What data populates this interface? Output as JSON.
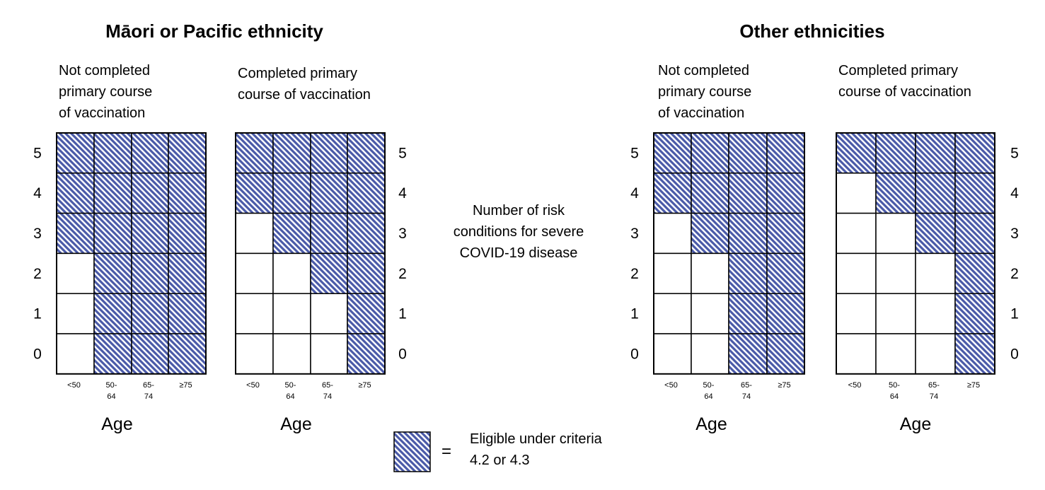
{
  "colors": {
    "hatch_fill": "#4a5aa8",
    "hatch_background": "#ffffff",
    "grid_line": "#000000"
  },
  "sections": [
    {
      "title": "Māori or Pacific ethnicity"
    },
    {
      "title": "Other ethnicities"
    }
  ],
  "row_values": [
    "5",
    "4",
    "3",
    "2",
    "1",
    "0"
  ],
  "age_ticks": [
    [
      "<50"
    ],
    [
      "50-",
      "64"
    ],
    [
      "65-",
      "74"
    ],
    [
      "≥75"
    ]
  ],
  "axis_title": "Age",
  "center_label": [
    "Number of risk",
    "conditions for severe",
    "COVID-19 disease"
  ],
  "legend": {
    "equals": "=",
    "text_lines": [
      "Eligible under criteria",
      "4.2 or 4.3"
    ]
  },
  "panels": [
    {
      "section": 0,
      "title_lines": [
        "Not completed",
        "primary course",
        "of vaccination"
      ],
      "row_label_side": "left",
      "eligible": [
        [
          1,
          1,
          1,
          1
        ],
        [
          1,
          1,
          1,
          1
        ],
        [
          1,
          1,
          1,
          1
        ],
        [
          0,
          1,
          1,
          1
        ],
        [
          0,
          1,
          1,
          1
        ],
        [
          0,
          1,
          1,
          1
        ]
      ]
    },
    {
      "section": 0,
      "title_lines": [
        "Completed primary",
        "course of vaccination"
      ],
      "row_label_side": "right",
      "eligible": [
        [
          1,
          1,
          1,
          1
        ],
        [
          1,
          1,
          1,
          1
        ],
        [
          0,
          1,
          1,
          1
        ],
        [
          0,
          0,
          1,
          1
        ],
        [
          0,
          0,
          0,
          1
        ],
        [
          0,
          0,
          0,
          1
        ]
      ]
    },
    {
      "section": 1,
      "title_lines": [
        "Not completed",
        "primary course",
        "of vaccination"
      ],
      "row_label_side": "left",
      "eligible": [
        [
          1,
          1,
          1,
          1
        ],
        [
          1,
          1,
          1,
          1
        ],
        [
          0,
          1,
          1,
          1
        ],
        [
          0,
          0,
          1,
          1
        ],
        [
          0,
          0,
          1,
          1
        ],
        [
          0,
          0,
          1,
          1
        ]
      ]
    },
    {
      "section": 1,
      "title_lines": [
        "Completed primary",
        "course of vaccination"
      ],
      "row_label_side": "right",
      "eligible": [
        [
          1,
          1,
          1,
          1
        ],
        [
          0,
          1,
          1,
          1
        ],
        [
          0,
          0,
          1,
          1
        ],
        [
          0,
          0,
          0,
          1
        ],
        [
          0,
          0,
          0,
          1
        ],
        [
          0,
          0,
          0,
          1
        ]
      ]
    }
  ]
}
